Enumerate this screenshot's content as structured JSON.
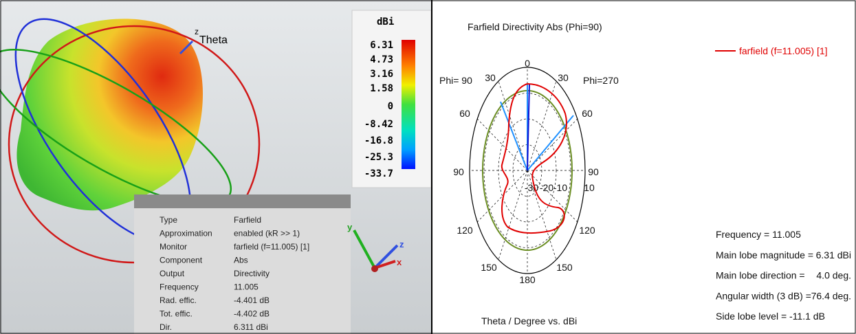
{
  "left_panel": {
    "axis_z": "z",
    "axis_label": "Theta",
    "colorbar": {
      "unit": "dBi",
      "labels": [
        "6.31",
        "4.73",
        "3.16",
        "1.58",
        "0",
        "-8.42",
        "-16.8",
        "-25.3",
        "-33.7"
      ]
    },
    "info": {
      "rows": [
        [
          "Type",
          "Farfield"
        ],
        [
          "Approximation",
          "enabled (kR >> 1)"
        ],
        [
          "Monitor",
          "farfield (f=11.005) [1]"
        ],
        [
          "Component",
          "Abs"
        ],
        [
          "Output",
          "Directivity"
        ],
        [
          "Frequency",
          "11.005"
        ],
        [
          "Rad. effic.",
          "-4.401 dB"
        ],
        [
          "Tot. effic.",
          "-4.402 dB"
        ],
        [
          "Dir.",
          "6.311 dBi"
        ]
      ]
    },
    "gizmo": {
      "y": "y",
      "z": "z",
      "x": "x"
    }
  },
  "right_panel": {
    "title": "Farfield Directivity Abs (Phi=90)",
    "legend": "farfield (f=11.005) [1]",
    "phi_left": "Phi= 90",
    "phi_right": "Phi=270",
    "angle_labels": [
      "0",
      "30",
      "30",
      "60",
      "60",
      "90",
      "90",
      "120",
      "120",
      "150",
      "150",
      "180"
    ],
    "radial_labels": [
      "-30",
      "-20",
      "-10",
      "10"
    ],
    "axis_title": "Theta / Degree vs. dBi",
    "stats": [
      [
        "Frequency = 11.005",
        ""
      ],
      [
        "Main lobe magnitude =",
        "6.31 dBi"
      ],
      [
        "Main lobe direction =",
        "4.0 deg."
      ],
      [
        "Angular width (3 dB) =",
        "76.4 deg."
      ],
      [
        "Side lobe level = -11.1 dB",
        ""
      ]
    ]
  }
}
